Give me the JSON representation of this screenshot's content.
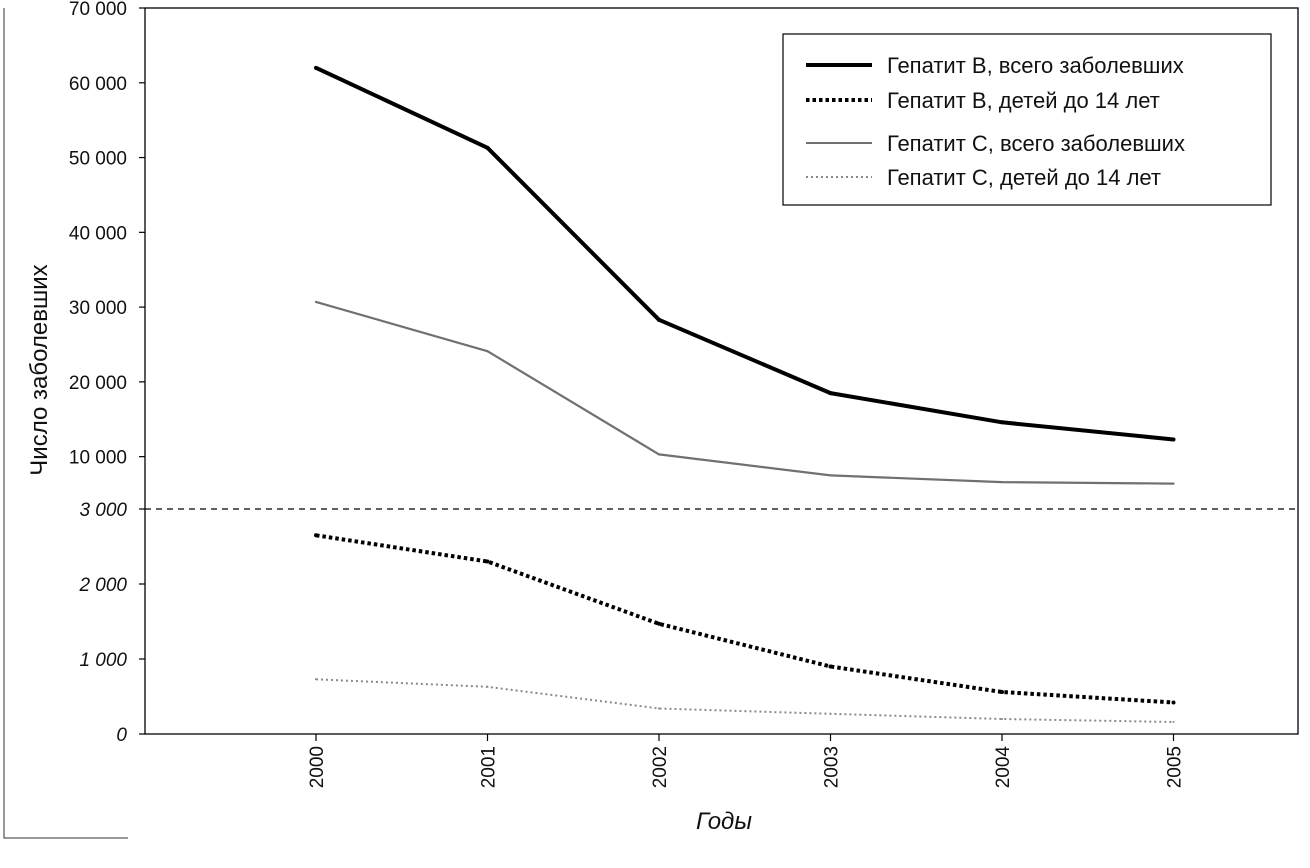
{
  "chart_data": {
    "type": "line",
    "ylabel": "Число заболевших",
    "xlabel": "Годы",
    "categories": [
      "2000",
      "2001",
      "2002",
      "2003",
      "2004",
      "2005"
    ],
    "y_axis": {
      "upper": {
        "ticks": [
          10000,
          20000,
          30000,
          40000,
          50000,
          60000,
          70000
        ],
        "tick_labels": [
          "10 000",
          "20 000",
          "30 000",
          "40 000",
          "50 000",
          "60 000",
          "70 000"
        ],
        "range": [
          3000,
          70000
        ]
      },
      "lower": {
        "ticks": [
          0,
          1000,
          2000,
          3000
        ],
        "tick_labels": [
          "0",
          "1 000",
          "2 000",
          "3 000"
        ],
        "range": [
          0,
          3000
        ]
      },
      "break_at": 3000,
      "break_line": "dashed"
    },
    "series": [
      {
        "name": "Гепатит B, всего заболевших",
        "scale": "upper",
        "style": "solid-thick",
        "color": "#000000",
        "values": [
          62000,
          51300,
          28300,
          18500,
          14600,
          12300
        ]
      },
      {
        "name": "Гепатит B, детей до 14 лет",
        "scale": "lower",
        "style": "dotted-thick",
        "color": "#000000",
        "values": [
          2650,
          2300,
          1470,
          900,
          560,
          420
        ]
      },
      {
        "name": "Гепатит C, всего заболевших",
        "scale": "upper",
        "style": "solid-thin-grey",
        "color": "#707070",
        "values": [
          30700,
          24100,
          10300,
          7500,
          6600,
          6400
        ]
      },
      {
        "name": "Гепатит C, детей до 14 лет",
        "scale": "lower",
        "style": "dotted-thin-grey",
        "color": "#8a8a8a",
        "values": [
          730,
          630,
          340,
          270,
          200,
          160
        ]
      }
    ],
    "legend_position": "top-right",
    "grid": false
  }
}
